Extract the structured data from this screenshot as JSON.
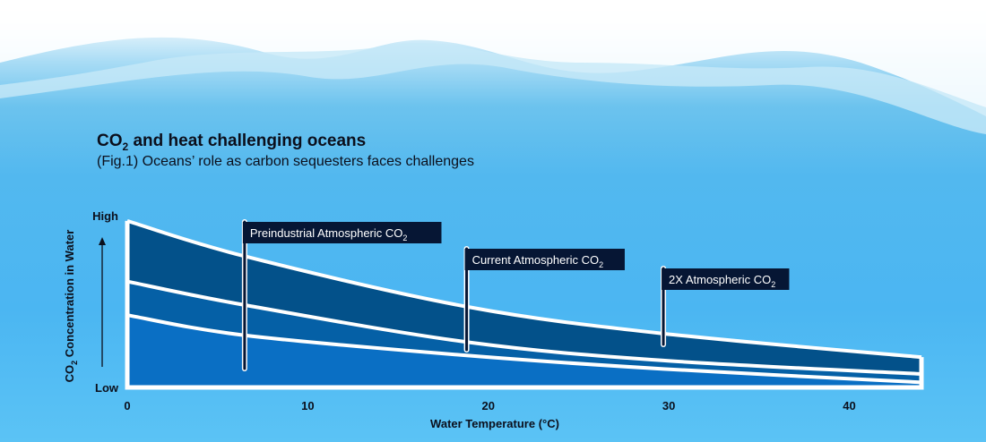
{
  "title": {
    "prefix": "CO",
    "sub": "2",
    "rest": " and heat challenging oceans"
  },
  "subtitle": "(Fig.1) Oceans’ role as carbon sequesters faces challenges",
  "chart_data": {
    "type": "area",
    "xlabel": "Water Temperature (°C)",
    "ylabel": {
      "prefix": "CO",
      "sub": "2",
      "rest": " Concentration in Water"
    },
    "xlim": [
      0,
      44
    ],
    "ylim": [
      0,
      1
    ],
    "xticks": [
      0,
      10,
      20,
      30,
      40
    ],
    "yticks": [
      {
        "value": 0,
        "label": "Low"
      },
      {
        "value": 1,
        "label": "High"
      }
    ],
    "grid": false,
    "x": [
      0,
      6.5,
      18.8,
      29.7,
      44
    ],
    "series": [
      {
        "name": {
          "prefix": "2X Atmospheric CO",
          "sub": "2"
        },
        "values": [
          0.99,
          0.78,
          0.48,
          0.32,
          0.18
        ],
        "color": "#03518a",
        "label_x": 29.7
      },
      {
        "name": {
          "prefix": "Current Atmospheric CO",
          "sub": "2"
        },
        "values": [
          0.63,
          0.49,
          0.27,
          0.16,
          0.08
        ],
        "color": "#0560a6",
        "label_x": 18.8
      },
      {
        "name": {
          "prefix": "Preindustrial Atmospheric CO",
          "sub": "2"
        },
        "values": [
          0.43,
          0.31,
          0.19,
          0.11,
          0.03
        ],
        "color": "#0a6fc4",
        "label_x": 6.5
      }
    ],
    "label_box_color": "#061634"
  }
}
